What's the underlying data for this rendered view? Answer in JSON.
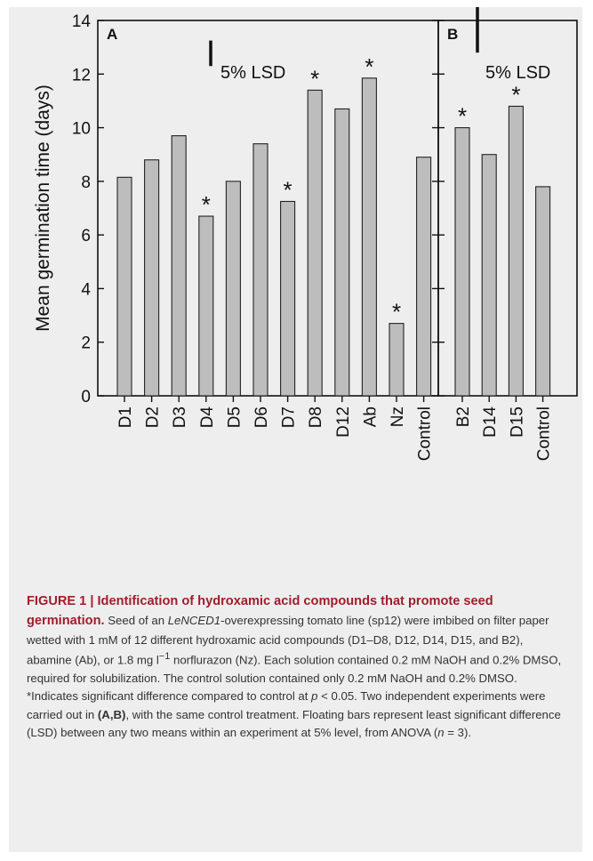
{
  "colors": {
    "card_background": "#eeeeef",
    "bar_fill": "#bdbdbd",
    "bar_stroke": "#222222",
    "caption_title": "#a11d2a",
    "caption_text": "#333333"
  },
  "chart_data": [
    {
      "type": "bar",
      "panel_label": "A",
      "categories": [
        "D1",
        "D2",
        "D3",
        "D4",
        "D5",
        "D6",
        "D7",
        "D8",
        "D12",
        "Ab",
        "Nz",
        "Control"
      ],
      "values": [
        8.15,
        8.8,
        9.7,
        6.7,
        8.0,
        9.4,
        7.25,
        11.4,
        10.7,
        11.85,
        2.7,
        8.9
      ],
      "significant": [
        false,
        false,
        false,
        true,
        false,
        false,
        true,
        true,
        false,
        true,
        true,
        false
      ],
      "ylabel": "Mean germination time (days)",
      "ylim": [
        0,
        14
      ],
      "yticks": [
        0,
        2,
        4,
        6,
        8,
        10,
        12,
        14
      ],
      "lsd": {
        "label": "5% LSD",
        "from": 12.3,
        "to": 13.25
      },
      "grid": false
    },
    {
      "type": "bar",
      "panel_label": "B",
      "categories": [
        "B2",
        "D14",
        "D15",
        "Control"
      ],
      "values": [
        10.0,
        9.0,
        10.8,
        7.8
      ],
      "significant": [
        true,
        false,
        true,
        false
      ],
      "ylim": [
        0,
        14
      ],
      "yticks": [
        0,
        2,
        4,
        6,
        8,
        10,
        12,
        14
      ],
      "lsd": {
        "label": "5% LSD",
        "from": 12.8,
        "to": 14.65
      },
      "grid": false
    }
  ],
  "star_symbol": "*",
  "caption": {
    "title": "FIGURE 1 | Identification of hydroxamic acid compounds that promote seed germination.",
    "t1": " Seed of an ",
    "italic1": "LeNCED1",
    "t2": "-overexpressing tomato line (sp12) were imbibed on filter paper wetted with 1 mM of 12 different hydroxamic acid compounds (D1–D8, D12, D14, D15, and B2), abamine (Ab), or 1.8 mg l",
    "sup1": "−1",
    "t3": " norflurazon (Nz). Each solution contained 0.2 mM NaOH and 0.2% DMSO, required for solubilization. The control solution contained only 0.2 mM NaOH and 0.2% DMSO. *Indicates significant difference compared to control at ",
    "italic2": "p",
    "t4": " < 0.05. Two independent experiments were carried out in ",
    "bold1": "(A,B)",
    "t5": ", with the same control treatment. Floating bars represent least significant difference (LSD) between any two means within an experiment at 5% level, from ANOVA (",
    "italic3": "n",
    "t6": " = 3)."
  }
}
